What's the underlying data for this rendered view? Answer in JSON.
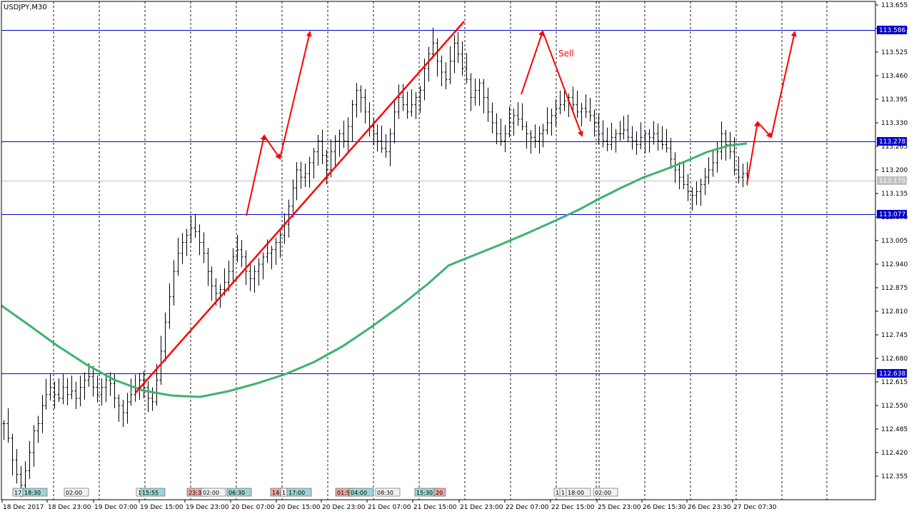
{
  "chart_data": {
    "type": "ohlc",
    "title": "USDJPY,M30",
    "symbol": "USDJPY",
    "timeframe": "M30",
    "ylim": [
      112.29,
      113.665
    ],
    "y_ticks": [
      "113.655",
      "113.590",
      "113.525",
      "113.460",
      "113.395",
      "113.330",
      "113.265",
      "113.200",
      "113.135",
      "113.070",
      "113.005",
      "112.940",
      "112.875",
      "112.810",
      "112.745",
      "112.680",
      "112.615",
      "112.550",
      "112.485",
      "112.420",
      "112.355"
    ],
    "x_ticks": [
      "18 Dec 2017",
      "18 Dec 23:00",
      "19 Dec 07:00",
      "19 Dec 15:00",
      "19 Dec 23:00",
      "20 Dec 07:00",
      "20 Dec 15:00",
      "20 Dec 23:00",
      "21 Dec 07:00",
      "21 Dec 15:00",
      "21 Dec 23:00",
      "22 Dec 07:00",
      "22 Dec 15:00",
      "25 Dec 23:00",
      "26 Dec 15:30",
      "26 Dec 23:30",
      "27 Dec 07:30"
    ],
    "horizontal_levels": [
      {
        "price": 113.586,
        "label": "113.586"
      },
      {
        "price": 113.278,
        "label": "113.278"
      },
      {
        "price": 113.077,
        "label": "113.077"
      },
      {
        "price": 112.638,
        "label": "112.638"
      }
    ],
    "current_price": {
      "price": 113.17,
      "label": "113.170"
    },
    "bars_close": [
      112.5,
      112.46,
      112.4,
      112.36,
      112.33,
      112.37,
      112.42,
      112.48,
      112.5,
      112.55,
      112.58,
      112.6,
      112.58,
      112.57,
      112.6,
      112.58,
      112.59,
      112.57,
      112.6,
      112.62,
      112.63,
      112.6,
      112.58,
      112.6,
      112.62,
      112.61,
      112.57,
      112.55,
      112.53,
      112.56,
      112.58,
      112.6,
      112.62,
      112.6,
      112.57,
      112.56,
      112.62,
      112.7,
      112.78,
      112.85,
      112.92,
      112.97,
      113.0,
      113.02,
      113.04,
      113.03,
      113.0,
      112.97,
      112.92,
      112.88,
      112.86,
      112.87,
      112.89,
      112.92,
      112.96,
      112.98,
      112.96,
      112.92,
      112.9,
      112.92,
      112.94,
      112.96,
      112.97,
      112.98,
      113.0,
      113.02,
      113.05,
      113.1,
      113.15,
      113.2,
      113.18,
      113.19,
      113.22,
      113.25,
      113.28,
      113.24,
      113.2,
      113.25,
      113.28,
      113.3,
      113.28,
      113.32,
      113.38,
      113.42,
      113.4,
      113.36,
      113.32,
      113.3,
      113.28,
      113.26,
      113.25,
      113.3,
      113.36,
      113.4,
      113.38,
      113.36,
      113.38,
      113.4,
      113.42,
      113.48,
      113.52,
      113.55,
      113.5,
      113.47,
      113.45,
      113.5,
      113.55,
      113.52,
      113.48,
      113.45,
      113.4,
      113.42,
      113.44,
      113.4,
      113.36,
      113.33,
      113.3,
      113.28,
      113.3,
      113.33,
      113.35,
      113.34,
      113.32,
      113.3,
      113.29,
      113.28,
      113.3,
      113.31,
      113.33,
      113.35,
      113.37,
      113.38,
      113.39,
      113.4,
      113.38,
      113.36,
      113.37,
      113.36,
      113.35,
      113.33,
      113.3,
      113.28,
      113.27,
      113.29,
      113.3,
      113.3,
      113.31,
      113.29,
      113.28,
      113.27,
      113.29,
      113.3,
      113.29,
      113.3,
      113.28,
      113.27,
      113.26,
      113.23,
      113.2,
      113.18,
      113.16,
      113.14,
      113.13,
      113.14,
      113.16,
      113.18,
      113.2,
      113.22,
      113.25,
      113.3,
      113.27,
      113.25,
      113.2,
      113.18,
      113.19,
      113.18
    ],
    "annotations": [
      {
        "text": "Sell"
      }
    ],
    "time_markers": [
      "17",
      "18:30",
      "02:00",
      "1",
      "15:55",
      "23:3",
      "02:00",
      "06:30",
      "14:",
      "1",
      "17:00",
      "01:5",
      "04:00",
      "08:30",
      "15:30",
      "20",
      "1",
      "1",
      "18:00",
      "02:00"
    ],
    "colors": {
      "bars": "#000000",
      "moving_average": "#3cb371",
      "levels": "#0000cd",
      "level_label_bg": "#0000cd",
      "arrows": "#ff0000",
      "grid": "#000000",
      "current_price_line": "#c0c0c0"
    }
  }
}
